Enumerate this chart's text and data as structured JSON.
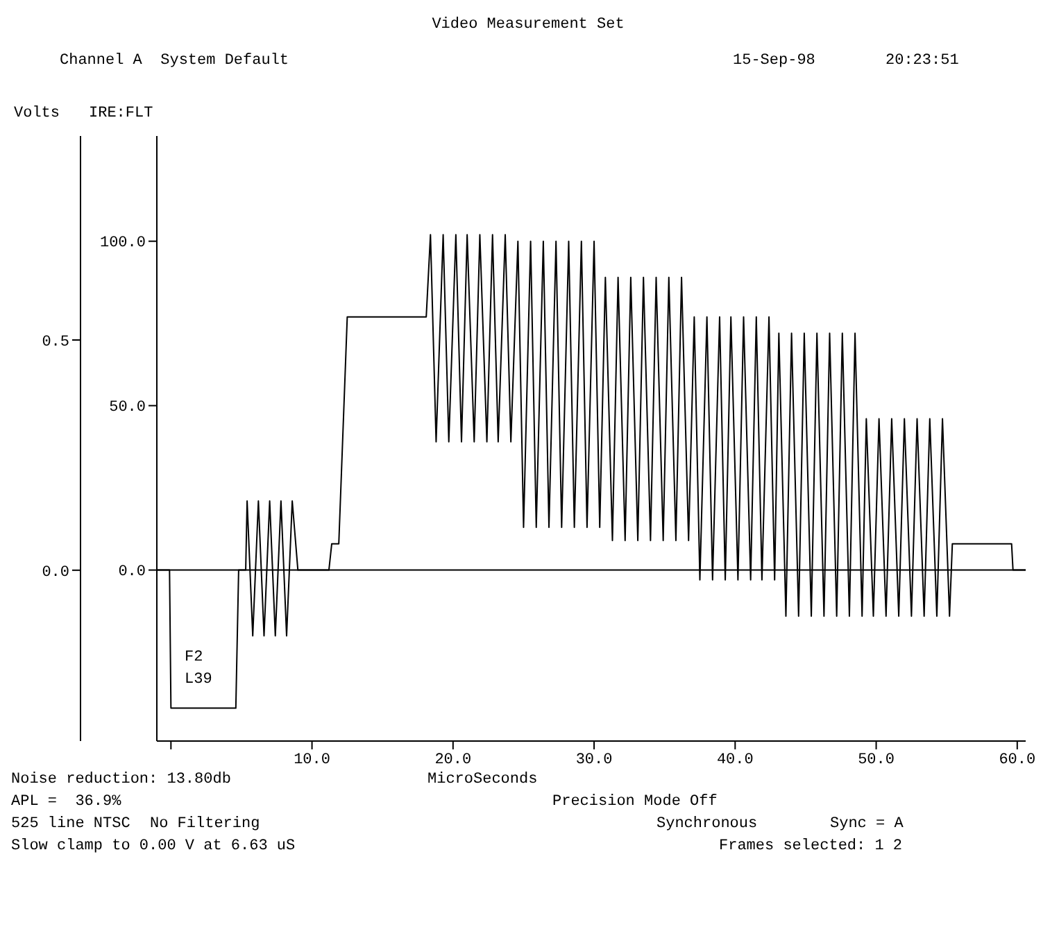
{
  "chart_data": {
    "type": "line",
    "title": "Video Measurement Set",
    "xlabel": "MicroSeconds",
    "ylabel": "IRE:FLT",
    "y2label": "Volts",
    "x": [
      -1,
      -0.1,
      0,
      4.6,
      4.8,
      5.3,
      5.4,
      5.8,
      6.2,
      6.6,
      7.0,
      7.4,
      7.8,
      8.2,
      8.6,
      9.0,
      11.2,
      11.4,
      11.9,
      12.5,
      18.1,
      18.4,
      18.8,
      19.3,
      19.7,
      20.2,
      20.6,
      21.0,
      21.5,
      21.9,
      22.4,
      22.8,
      23.2,
      23.7,
      24.1,
      24.6,
      25.0,
      25.5,
      25.9,
      26.4,
      26.8,
      27.3,
      27.7,
      28.2,
      28.6,
      29.1,
      29.5,
      30.0,
      30.4,
      30.8,
      31.3,
      31.7,
      32.2,
      32.6,
      33.1,
      33.5,
      34.0,
      34.4,
      34.9,
      35.3,
      35.8,
      36.2,
      36.7,
      37.1,
      37.5,
      38.0,
      38.4,
      38.9,
      39.3,
      39.7,
      40.2,
      40.6,
      41.1,
      41.5,
      41.9,
      42.4,
      42.8,
      43.1,
      43.6,
      44.0,
      44.5,
      44.9,
      45.4,
      45.8,
      46.3,
      46.7,
      47.2,
      47.6,
      48.1,
      48.5,
      49.0,
      49.3,
      49.8,
      50.2,
      50.7,
      51.1,
      51.6,
      52.0,
      52.5,
      52.9,
      53.4,
      53.8,
      54.3,
      54.7,
      55.2,
      55.4,
      59.6,
      59.7,
      60.6
    ],
    "series": [
      {
        "color": "#000000",
        "values": [
          0,
          0,
          -42,
          -42,
          0,
          0,
          21,
          -20,
          21,
          -20,
          21,
          -20,
          21,
          -20,
          21,
          0,
          0,
          8,
          8,
          77,
          77,
          102,
          39,
          102,
          39,
          102,
          39,
          102,
          39,
          102,
          39,
          102,
          39,
          102,
          39,
          100,
          13,
          100,
          13,
          100,
          13,
          100,
          13,
          100,
          13,
          100,
          13,
          100,
          13,
          89,
          9,
          89,
          9,
          89,
          9,
          89,
          9,
          89,
          9,
          89,
          9,
          89,
          9,
          77,
          -3,
          77,
          -3,
          77,
          -3,
          77,
          -3,
          77,
          -3,
          77,
          -3,
          77,
          -3,
          72,
          -14,
          72,
          -14,
          72,
          -14,
          72,
          -14,
          72,
          -14,
          72,
          -14,
          72,
          -14,
          46,
          -14,
          46,
          -14,
          46,
          -14,
          46,
          -14,
          46,
          -14,
          46,
          -14,
          46,
          -14,
          8,
          8,
          0,
          0
        ]
      }
    ],
    "xlim": [
      -1,
      60.6
    ],
    "xticks": [
      {
        "value": 0,
        "label": null
      },
      {
        "value": 10,
        "label": "10.0"
      },
      {
        "value": 20,
        "label": "20.0"
      },
      {
        "value": 30,
        "label": "30.0"
      },
      {
        "value": 40,
        "label": "40.0"
      },
      {
        "value": 50,
        "label": "50.0"
      },
      {
        "value": 60,
        "label": "60.0"
      }
    ],
    "ylim": [
      -52,
      132
    ],
    "yticks": [
      {
        "value": 0,
        "label": "0.0"
      },
      {
        "value": 50,
        "label": "50.0"
      },
      {
        "value": 100,
        "label": "100.0"
      }
    ],
    "y2lim": [
      -0.371,
      0.943
    ],
    "y2ticks": [
      {
        "value": 0,
        "label": "0.0"
      },
      {
        "value": 0.5,
        "label": "0.5"
      }
    ],
    "ref_lines": [
      {
        "axis": "y",
        "value": 0,
        "color": "#000000"
      }
    ],
    "grid": false,
    "annotations": [
      "Channel A  System Default",
      "15-Sep-98",
      "20:23:51",
      "F2",
      "L39",
      "Noise reduction: 13.80db",
      "APL =  36.9%",
      "Precision Mode Off",
      "525 line NTSC",
      "No Filtering",
      "Synchronous",
      "Sync = A",
      "Slow clamp to 0.00 V at 6.63 uS",
      "Frames selected: 1 2"
    ]
  }
}
